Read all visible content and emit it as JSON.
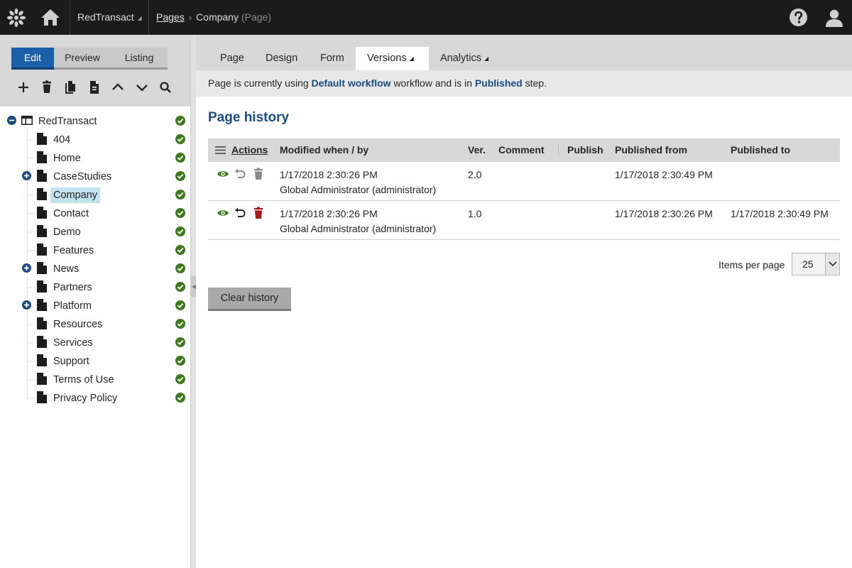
{
  "topbar": {
    "site_name": "RedTransact",
    "breadcrumb": {
      "root": "Pages",
      "current": "Company",
      "type": "(Page)"
    },
    "icons": [
      "kentico-logo-icon",
      "home-icon",
      "help-icon",
      "user-icon"
    ]
  },
  "left": {
    "modes": {
      "edit": "Edit",
      "preview": "Preview",
      "listing": "Listing",
      "active": "Edit"
    },
    "toolbar_icons": [
      "add-icon",
      "delete-icon",
      "copy-icon",
      "page-icon",
      "move-up-icon",
      "move-down-icon",
      "search-icon"
    ],
    "tree": {
      "root": "RedTransact",
      "items": [
        {
          "label": "404",
          "expandable": false
        },
        {
          "label": "Home",
          "expandable": false
        },
        {
          "label": "CaseStudies",
          "expandable": true
        },
        {
          "label": "Company",
          "expandable": false,
          "selected": true
        },
        {
          "label": "Contact",
          "expandable": false
        },
        {
          "label": "Demo",
          "expandable": false
        },
        {
          "label": "Features",
          "expandable": false
        },
        {
          "label": "News",
          "expandable": true
        },
        {
          "label": "Partners",
          "expandable": false
        },
        {
          "label": "Platform",
          "expandable": true
        },
        {
          "label": "Resources",
          "expandable": false
        },
        {
          "label": "Services",
          "expandable": false
        },
        {
          "label": "Support",
          "expandable": false
        },
        {
          "label": "Terms of Use",
          "expandable": false
        },
        {
          "label": "Privacy Policy",
          "expandable": false
        }
      ]
    }
  },
  "tabs": [
    {
      "label": "Page",
      "dropdown": false
    },
    {
      "label": "Design",
      "dropdown": false
    },
    {
      "label": "Form",
      "dropdown": false
    },
    {
      "label": "Versions",
      "dropdown": true,
      "active": true
    },
    {
      "label": "Analytics",
      "dropdown": true
    }
  ],
  "notice": {
    "prefix": "Page is currently using ",
    "workflow": "Default workflow",
    "middle": " workflow and is in ",
    "step": "Published",
    "suffix": " step."
  },
  "history": {
    "title": "Page history",
    "columns": {
      "actions": "Actions",
      "modified": "Modified when / by",
      "version": "Ver.",
      "comment": "Comment",
      "publish": "Publish",
      "published_from": "Published from",
      "published_to": "Published to"
    },
    "rows": [
      {
        "modified_when": "1/17/2018 2:30:26 PM",
        "modified_by": "Global Administrator (administrator)",
        "version": "2.0",
        "comment": "",
        "publish": "",
        "published_from": "1/17/2018 2:30:49 PM",
        "published_to": "",
        "actions": [
          "view-icon",
          "rollback-icon",
          "delete-icon"
        ],
        "actions_enabled": false
      },
      {
        "modified_when": "1/17/2018 2:30:26 PM",
        "modified_by": "Global Administrator (administrator)",
        "version": "1.0",
        "comment": "",
        "publish": "",
        "published_from": "1/17/2018 2:30:26 PM",
        "published_to": "1/17/2018 2:30:49 PM",
        "actions": [
          "view-icon",
          "rollback-icon",
          "delete-icon"
        ],
        "actions_enabled": true
      }
    ],
    "items_per_page_label": "Items per page",
    "items_per_page_value": "25",
    "clear_button": "Clear history"
  },
  "colors": {
    "topbar": "#1b1b1b",
    "accent_blue": "#1a4b83",
    "edit_button": "#1b5fa8",
    "selected_node": "#c2e2ee",
    "published_check": "#3d7a1c",
    "delete_red": "#a4161a"
  }
}
